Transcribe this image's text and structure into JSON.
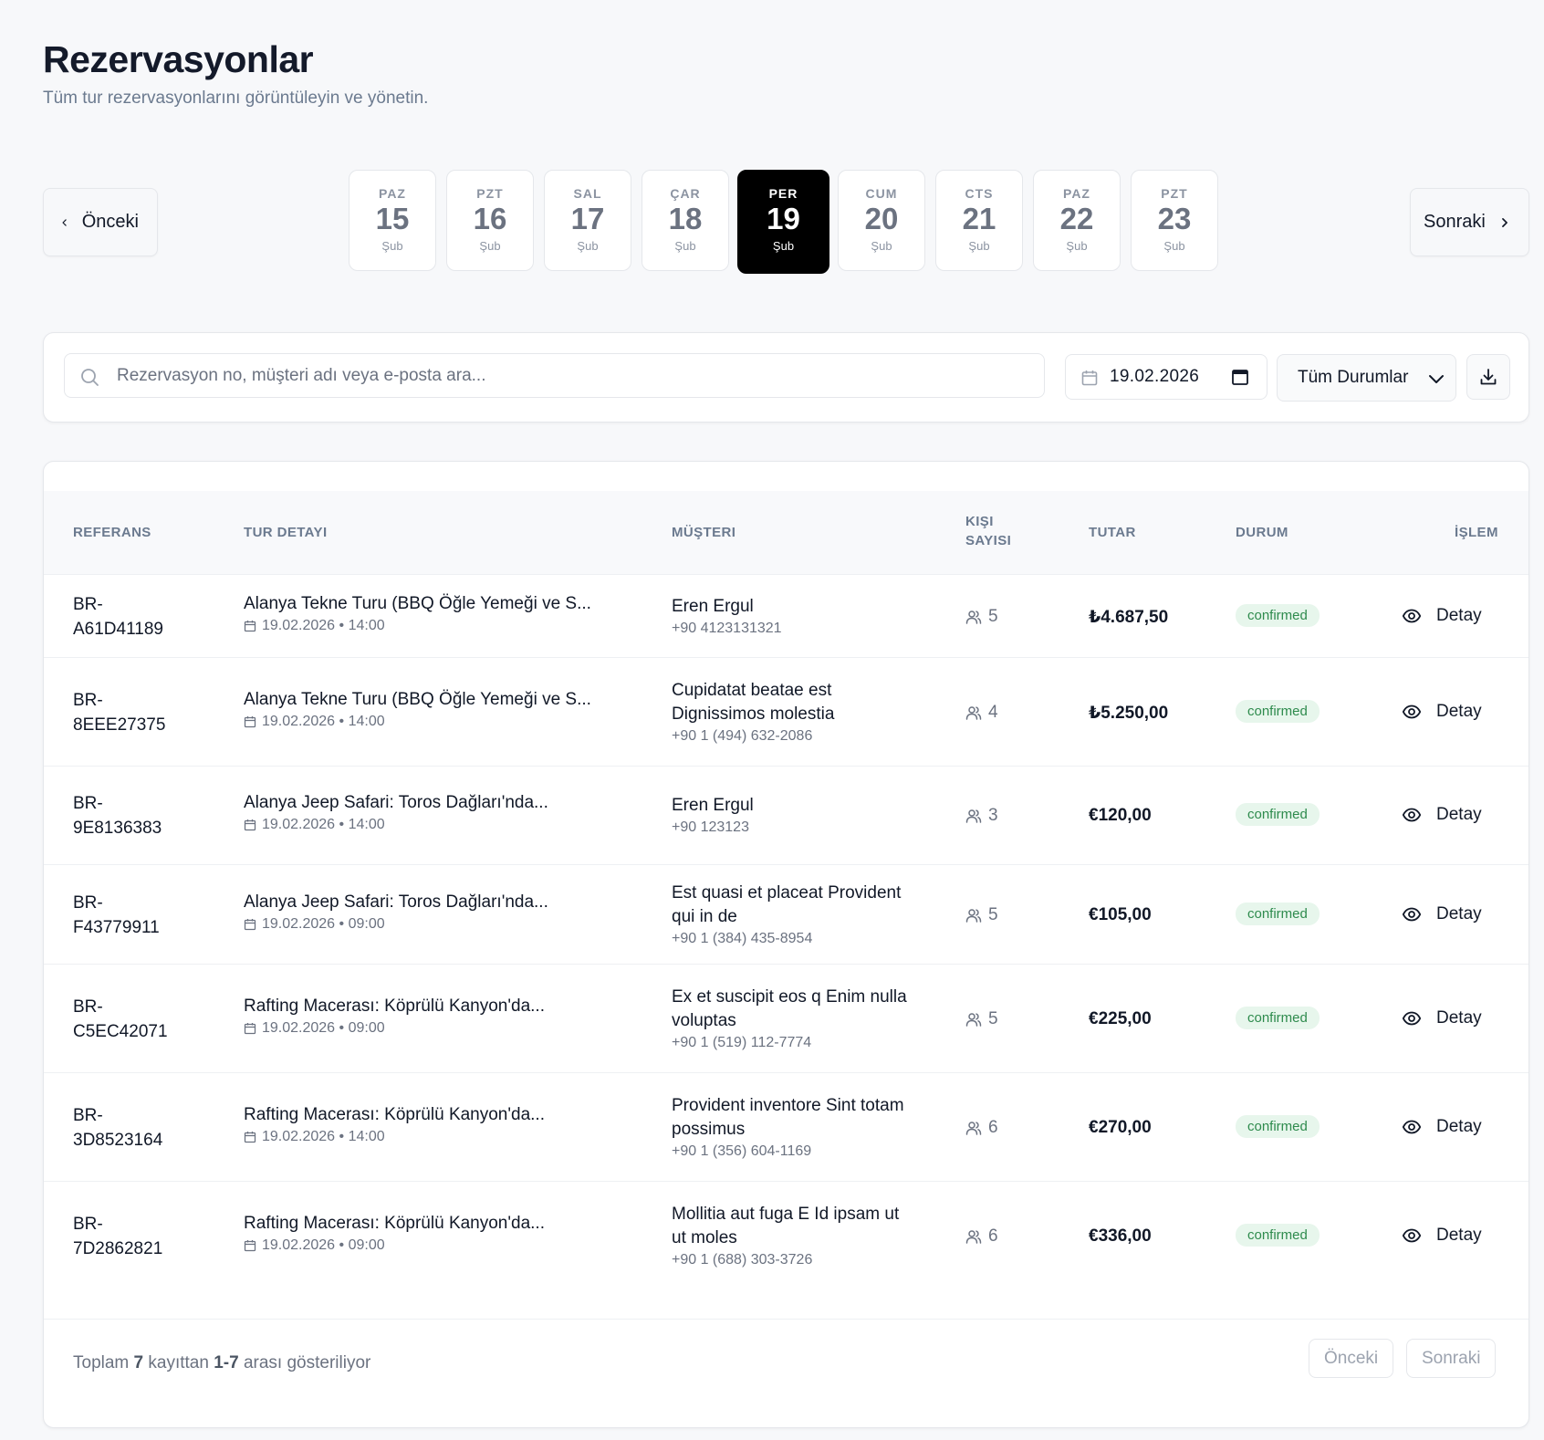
{
  "header": {
    "title": "Rezervasyonlar",
    "subtitle": "Tüm tur rezervasyonlarını görüntüleyin ve yönetin."
  },
  "date_nav": {
    "prev_label": "Önceki",
    "next_label": "Sonraki",
    "days": [
      {
        "dow": "PAZ",
        "num": "15",
        "mon": "Şub"
      },
      {
        "dow": "PZT",
        "num": "16",
        "mon": "Şub"
      },
      {
        "dow": "SAL",
        "num": "17",
        "mon": "Şub"
      },
      {
        "dow": "ÇAR",
        "num": "18",
        "mon": "Şub"
      },
      {
        "dow": "PER",
        "num": "19",
        "mon": "Şub"
      },
      {
        "dow": "CUM",
        "num": "20",
        "mon": "Şub"
      },
      {
        "dow": "CTS",
        "num": "21",
        "mon": "Şub"
      },
      {
        "dow": "PAZ",
        "num": "22",
        "mon": "Şub"
      },
      {
        "dow": "PZT",
        "num": "23",
        "mon": "Şub"
      }
    ],
    "selected_index": 4
  },
  "filters": {
    "search_placeholder": "Rezervasyon no, müşteri adı veya e-posta ara...",
    "date_value": "19.02.2026",
    "status_value": "Tüm Durumlar"
  },
  "table": {
    "headers": {
      "ref": "REFERANS",
      "tour": "TUR DETAYI",
      "customer": "MÜŞTERI",
      "pax_line1": "KIŞI",
      "pax_line2": "SAYISI",
      "amount": "TUTAR",
      "status": "DURUM",
      "action": "İŞLEM"
    },
    "action_label": "Detay",
    "rows": [
      {
        "ref1": "BR-",
        "ref2": "A61D41189",
        "tour": "Alanya Tekne Turu (BBQ Öğle Yemeği ve S...",
        "meta": "19.02.2026 • 14:00",
        "name": "Eren Ergul",
        "phone": "+90 4123131321",
        "pax": "5",
        "amount": "₺4.687,50",
        "status": "confirmed"
      },
      {
        "ref1": "BR-",
        "ref2": "8EEE27375",
        "tour": "Alanya Tekne Turu (BBQ Öğle Yemeği ve S...",
        "meta": "19.02.2026 • 14:00",
        "name": "Cupidatat beatae est Dignissimos molestia",
        "phone": "+90 1 (494) 632-2086",
        "pax": "4",
        "amount": "₺5.250,00",
        "status": "confirmed"
      },
      {
        "ref1": "BR-",
        "ref2": "9E8136383",
        "tour": "Alanya Jeep Safari: Toros Dağları'nda...",
        "meta": "19.02.2026 • 14:00",
        "name": "Eren Ergul",
        "phone": "+90 123123",
        "pax": "3",
        "amount": "€120,00",
        "status": "confirmed"
      },
      {
        "ref1": "BR-",
        "ref2": "F43779911",
        "tour": "Alanya Jeep Safari: Toros Dağları'nda...",
        "meta": "19.02.2026 • 09:00",
        "name": "Est quasi et placeat Provident qui in de",
        "phone": "+90 1 (384) 435-8954",
        "pax": "5",
        "amount": "€105,00",
        "status": "confirmed"
      },
      {
        "ref1": "BR-",
        "ref2": "C5EC42071",
        "tour": "Rafting Macerası: Köprülü Kanyon'da...",
        "meta": "19.02.2026 • 09:00",
        "name": "Ex et suscipit eos q Enim nulla voluptas",
        "phone": "+90 1 (519) 112-7774",
        "pax": "5",
        "amount": "€225,00",
        "status": "confirmed"
      },
      {
        "ref1": "BR-",
        "ref2": "3D8523164",
        "tour": "Rafting Macerası: Köprülü Kanyon'da...",
        "meta": "19.02.2026 • 14:00",
        "name": "Provident inventore Sint totam possimus",
        "phone": "+90 1 (356) 604-1169",
        "pax": "6",
        "amount": "€270,00",
        "status": "confirmed"
      },
      {
        "ref1": "BR-",
        "ref2": "7D2862821",
        "tour": "Rafting Macerası: Köprülü Kanyon'da...",
        "meta": "19.02.2026 • 09:00",
        "name": "Mollitia aut fuga E Id ipsam ut ut moles",
        "phone": "+90 1 (688) 303-3726",
        "pax": "6",
        "amount": "€336,00",
        "status": "confirmed"
      }
    ]
  },
  "footer": {
    "text_prefix": "Toplam",
    "total": "7",
    "text_mid": "kayıttan",
    "range": "1-7",
    "text_suffix": "arası gösteriliyor",
    "prev_label": "Önceki",
    "next_label": "Sonraki"
  },
  "colors": {
    "badge_bg": "#e7f6ec",
    "badge_text": "#2e8b4d",
    "active_day": "#000000"
  }
}
